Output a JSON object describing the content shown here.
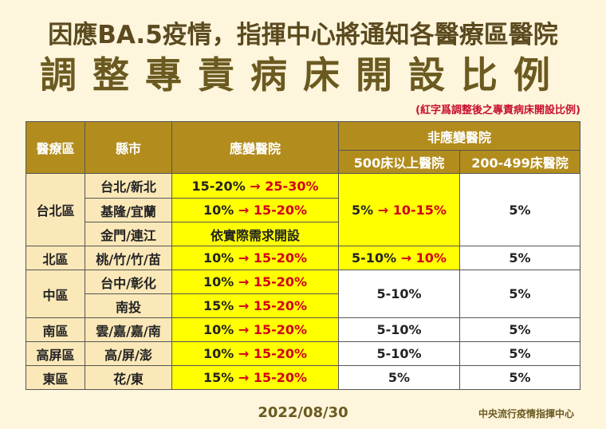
{
  "title_line1": "因應BA.5疫情，指揮中心將通知各醫療區醫院",
  "title_line2": "調整專責病床開設比例",
  "note": "(紅字爲調整後之專責病床開設比例)",
  "headers": {
    "region": "醫療區",
    "county": "縣市",
    "response_hospital": "應變醫院",
    "non_response": "非應變醫院",
    "over500": "500床以上醫院",
    "b200_499": "200-499床醫院"
  },
  "arrow": "→",
  "rows": {
    "taipei_region": "台北區",
    "taipei_newtaipei": {
      "county": "台北/新北",
      "old": "15-20%",
      "new": "25-30%"
    },
    "keelung_yilan": {
      "county": "基隆/宜蘭",
      "old": "10%",
      "new": "15-20%"
    },
    "kinmen_lienchiang": {
      "county": "金門/連江",
      "text": "依實際需求開設"
    },
    "taipei_500": {
      "old": "5%",
      "new": "10-15%"
    },
    "taipei_200": "5%",
    "north": {
      "region": "北區",
      "county": "桃/竹/竹/苗",
      "old": "10%",
      "new": "15-20%",
      "b500_old": "5-10%",
      "b500_new": "10%",
      "b200": "5%"
    },
    "central_region": "中區",
    "taichung_changhua": {
      "county": "台中/彰化",
      "old": "10%",
      "new": "15-20%"
    },
    "nantou": {
      "county": "南投",
      "old": "15%",
      "new": "15-20%"
    },
    "central_500": "5-10%",
    "central_200": "5%",
    "south": {
      "region": "南區",
      "county": "雲/嘉/嘉/南",
      "old": "10%",
      "new": "15-20%",
      "b500": "5-10%",
      "b200": "5%"
    },
    "kaoping": {
      "region": "高屏區",
      "county": "高/屏/澎",
      "old": "10%",
      "new": "15-20%",
      "b500": "5-10%",
      "b200": "5%"
    },
    "east": {
      "region": "東區",
      "county": "花/東",
      "old": "15%",
      "new": "15-20%",
      "b500": "5%",
      "b200": "5%"
    }
  },
  "footer": {
    "date": "2022/08/30",
    "org": "中央流行疫情指揮中心"
  },
  "colors": {
    "header_bg": "#b28d1d",
    "cell_bg": "#fbe8b8",
    "highlight": "#ffff00",
    "red": "#d0021b"
  }
}
